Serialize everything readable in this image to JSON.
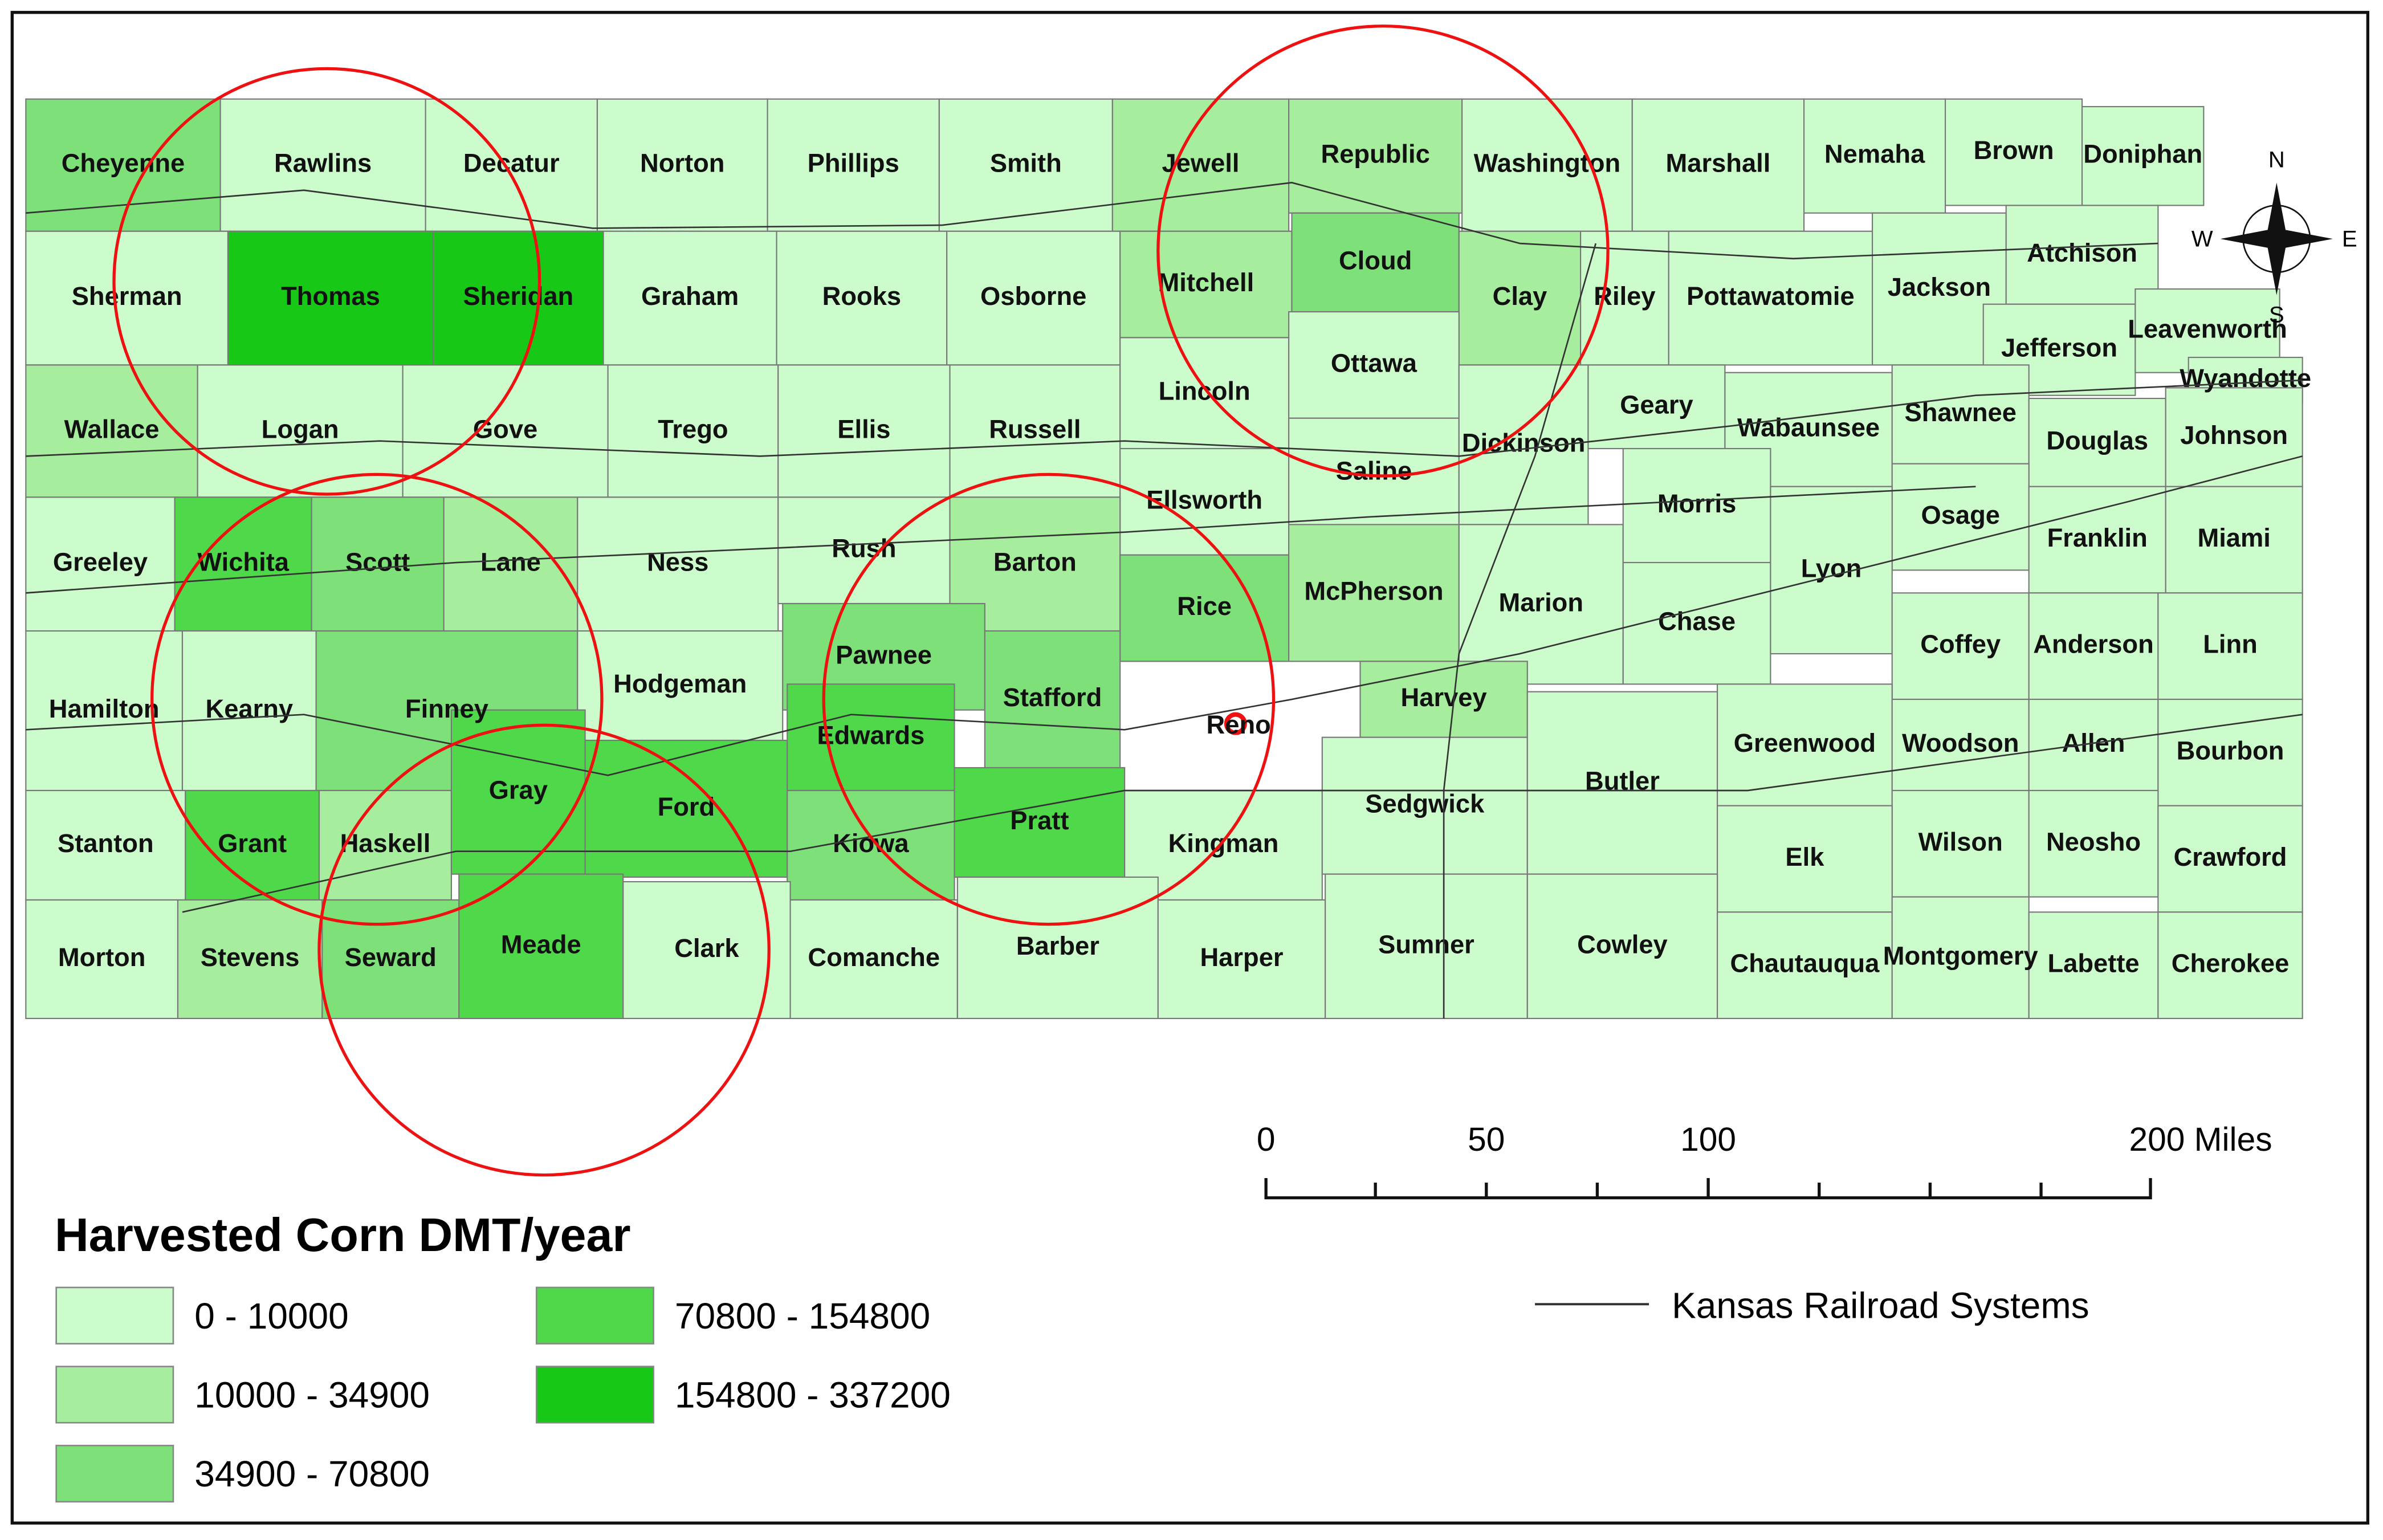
{
  "map": {
    "legend": {
      "title": "Harvested Corn DMT/year",
      "items": [
        {
          "label": "0 - 10000",
          "color": "#ccfccc"
        },
        {
          "label": "10000 - 34900",
          "color": "#a6ee9e"
        },
        {
          "label": "34900 - 70800",
          "color": "#7ee078"
        },
        {
          "label": "70800 - 154800",
          "color": "#4fd84a"
        },
        {
          "label": "154800 - 337200",
          "color": "#17c817"
        }
      ]
    },
    "railroad_label": "Kansas Railroad Systems",
    "scale_bar": {
      "labels": [
        "0",
        "50",
        "100",
        "200 Miles"
      ]
    },
    "compass": {
      "n": "N",
      "s": "S",
      "e": "E",
      "w": "W"
    },
    "marker_label": "Reno",
    "counties": [
      [
        "Cheyenne",
        2
      ],
      [
        "Rawlins",
        0
      ],
      [
        "Decatur",
        0
      ],
      [
        "Norton",
        0
      ],
      [
        "Phillips",
        0
      ],
      [
        "Smith",
        0
      ],
      [
        "Jewell",
        1
      ],
      [
        "Republic",
        1
      ],
      [
        "Washington",
        0
      ],
      [
        "Marshall",
        0
      ],
      [
        "Nemaha",
        0
      ],
      [
        "Brown",
        0
      ],
      [
        "Doniphan",
        0
      ],
      [
        "Sherman",
        0
      ],
      [
        "Thomas",
        4
      ],
      [
        "Sheridan",
        4
      ],
      [
        "Graham",
        0
      ],
      [
        "Rooks",
        0
      ],
      [
        "Osborne",
        0
      ],
      [
        "Mitchell",
        1
      ],
      [
        "Cloud",
        2
      ],
      [
        "Clay",
        1
      ],
      [
        "Riley",
        0
      ],
      [
        "Pottawatomie",
        0
      ],
      [
        "Jackson",
        0
      ],
      [
        "Atchison",
        0
      ],
      [
        "Jefferson",
        0
      ],
      [
        "Leavenworth",
        0
      ],
      [
        "Wyandotte",
        0
      ],
      [
        "Wallace",
        1
      ],
      [
        "Logan",
        0
      ],
      [
        "Gove",
        0
      ],
      [
        "Trego",
        0
      ],
      [
        "Ellis",
        0
      ],
      [
        "Russell",
        0
      ],
      [
        "Lincoln",
        0
      ],
      [
        "Ottawa",
        0
      ],
      [
        "Ellsworth",
        0
      ],
      [
        "Saline",
        0
      ],
      [
        "Dickinson",
        0
      ],
      [
        "Geary",
        0
      ],
      [
        "Wabaunsee",
        0
      ],
      [
        "Shawnee",
        0
      ],
      [
        "Douglas",
        0
      ],
      [
        "Johnson",
        0
      ],
      [
        "Greeley",
        0
      ],
      [
        "Wichita",
        3
      ],
      [
        "Scott",
        2
      ],
      [
        "Lane",
        1
      ],
      [
        "Ness",
        0
      ],
      [
        "Rush",
        0
      ],
      [
        "Barton",
        1
      ],
      [
        "Rice",
        2
      ],
      [
        "McPherson",
        1
      ],
      [
        "Marion",
        0
      ],
      [
        "Morris",
        0
      ],
      [
        "Osage",
        0
      ],
      [
        "Franklin",
        0
      ],
      [
        "Miami",
        0
      ],
      [
        "Chase",
        0
      ],
      [
        "Lyon",
        0
      ],
      [
        "Hamilton",
        0
      ],
      [
        "Kearny",
        0
      ],
      [
        "Finney",
        2
      ],
      [
        "Hodgeman",
        0
      ],
      [
        "Pawnee",
        2
      ],
      [
        "Stafford",
        2
      ],
      [
        "Harvey",
        1
      ],
      [
        "Coffey",
        0
      ],
      [
        "Anderson",
        0
      ],
      [
        "Linn",
        0
      ],
      [
        "Stanton",
        0
      ],
      [
        "Grant",
        3
      ],
      [
        "Haskell",
        1
      ],
      [
        "Gray",
        3
      ],
      [
        "Ford",
        3
      ],
      [
        "Edwards",
        3
      ],
      [
        "Kiowa",
        2
      ],
      [
        "Pratt",
        3
      ],
      [
        "Kingman",
        0
      ],
      [
        "Sedgwick",
        0
      ],
      [
        "Butler",
        0
      ],
      [
        "Greenwood",
        0
      ],
      [
        "Woodson",
        0
      ],
      [
        "Allen",
        0
      ],
      [
        "Bourbon",
        0
      ],
      [
        "Wilson",
        0
      ],
      [
        "Neosho",
        0
      ],
      [
        "Crawford",
        0
      ],
      [
        "Elk",
        0
      ],
      [
        "Morton",
        0
      ],
      [
        "Stevens",
        1
      ],
      [
        "Seward",
        2
      ],
      [
        "Meade",
        3
      ],
      [
        "Clark",
        0
      ],
      [
        "Comanche",
        0
      ],
      [
        "Barber",
        0
      ],
      [
        "Harper",
        0
      ],
      [
        "Sumner",
        0
      ],
      [
        "Cowley",
        0
      ],
      [
        "Chautauqua",
        0
      ],
      [
        "Montgomery",
        0
      ],
      [
        "Labette",
        0
      ],
      [
        "Cherokee",
        0
      ]
    ]
  }
}
